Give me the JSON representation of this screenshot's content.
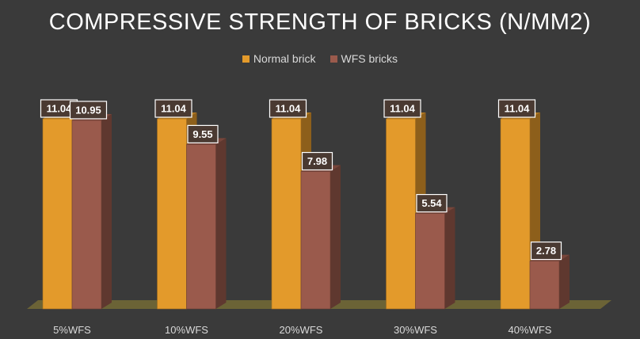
{
  "chart_data": {
    "type": "bar",
    "title": "COMPRESSIVE STRENGTH OF BRICKS (N/MM2)",
    "xlabel": "",
    "ylabel": "",
    "categories": [
      "5%WFS",
      "10%WFS",
      "20%WFS",
      "30%WFS",
      "40%WFS"
    ],
    "series": [
      {
        "name": "Normal brick",
        "color": "#e39a2b",
        "values": [
          11.04,
          11.04,
          11.04,
          11.04,
          11.04
        ]
      },
      {
        "name": "WFS bricks",
        "color": "#9a5a4c",
        "values": [
          10.95,
          9.55,
          7.98,
          5.54,
          2.78
        ]
      }
    ],
    "ylim": [
      0,
      11.04
    ],
    "legend_position": "top",
    "grid": false,
    "style": "3d-column"
  }
}
